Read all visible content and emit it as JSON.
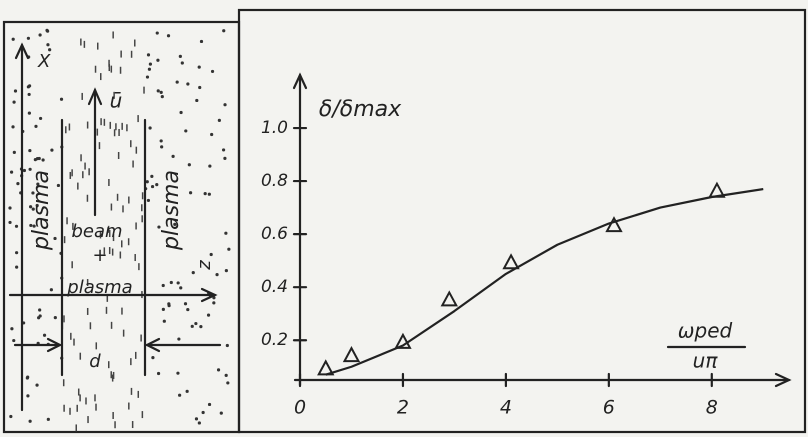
{
  "diagram": {
    "labels": {
      "x_axis": "X",
      "velocity": "ū",
      "plasma_left": "plasma",
      "plasma_right": "plasma",
      "beam": "beam",
      "plus": "+",
      "beam_plasma": "plasma",
      "z_axis": "z",
      "width": "d"
    }
  },
  "chart_data": {
    "type": "scatter",
    "ylabel": "δ/δmax",
    "xlabel": {
      "numerator": "ωped",
      "denominator": "uπ"
    },
    "series": [
      {
        "type": "scatter",
        "color": "#222222",
        "x": [
          0.5,
          1.0,
          2.0,
          2.9,
          4.1,
          6.1,
          8.1
        ],
        "values": [
          0.09,
          0.14,
          0.19,
          0.35,
          0.49,
          0.63,
          0.76
        ]
      },
      {
        "type": "line",
        "color": "#222222",
        "x": [
          0.5,
          1,
          2,
          3,
          4,
          5,
          6,
          7,
          8,
          9
        ],
        "values": [
          0.07,
          0.1,
          0.18,
          0.31,
          0.45,
          0.56,
          0.64,
          0.7,
          0.74,
          0.77
        ]
      }
    ],
    "xlim": [
      0,
      9.5
    ],
    "ylim": [
      0.05,
      1.2
    ],
    "xticks": [
      0,
      2,
      4,
      6,
      8
    ],
    "yticks": [
      0.2,
      0.4,
      0.6,
      0.8,
      {
        "value": 1,
        "label": "1.0"
      }
    ]
  }
}
